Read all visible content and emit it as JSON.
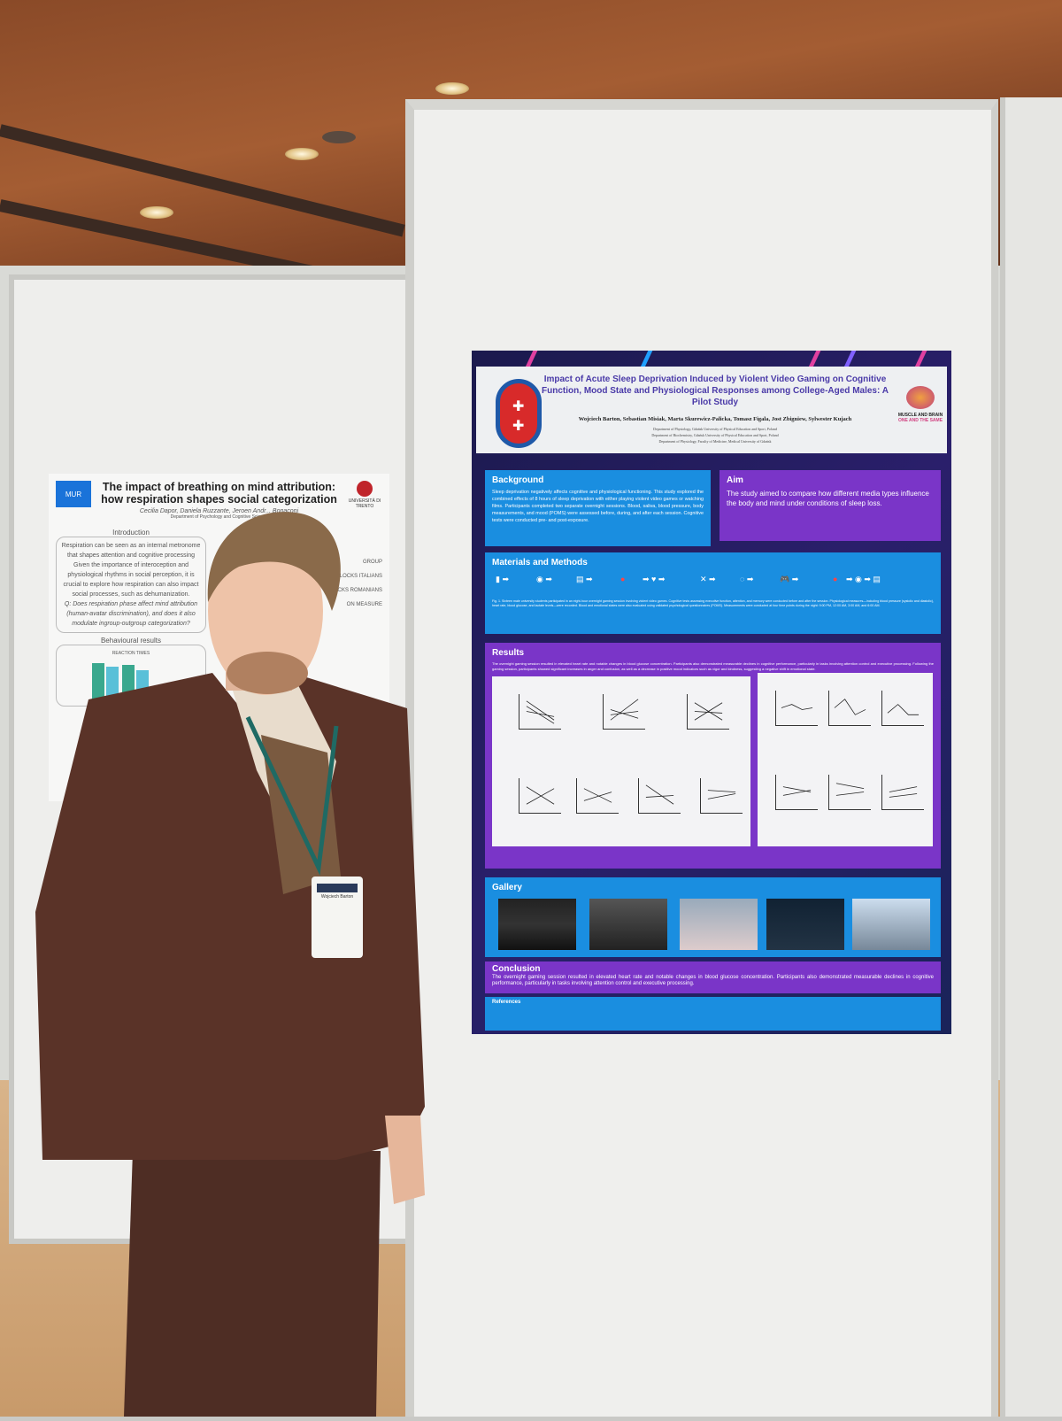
{
  "left_poster": {
    "title": "The impact of breathing on mind attribution: how respiration shapes social categorization",
    "authors": "Cecilia Dapor, Daniela Ruzzante, Jeroen Andr... Bonaconi",
    "department": "Department of Psychology and Cognitive Science",
    "logo_left": "MUR",
    "logo_right": "UNIVERSITÀ DI TRENTO",
    "intro_heading": "Introduction",
    "intro_p1": "Respiration can be seen as an internal metronome that shapes attention and cognitive processing",
    "intro_p2": "Given the importance of interoception and physiological rhythms in social perception, it is crucial to explore how respiration can also impact social processes, such as dehumanization.",
    "intro_q": "Q: Does respiration phase affect mind attribution (human-avatar discrimination), and does it also modulate ingroup-outgroup categorization?",
    "side_labels": [
      "GROUP",
      "BLOCKS ITALIANS",
      "BLOCKS ROMANIANS",
      "ON MEASURE"
    ],
    "results_heading": "Behavioural results",
    "chart_label": "REACTION TIMES"
  },
  "right_poster": {
    "title": "Impact of Acute Sleep Deprivation Induced by Violent Video Gaming on Cognitive Function, Mood State and Physiological Responses among College-Aged Males: A Pilot Study",
    "authors": "Wojciech Barton, Sebastian Misiak, Marta Skurewicz-Palicka, Tomasz Figala, Jost Zbigniew, Sylwester Kujach",
    "affiliations": [
      "Department of Physiology, Gdańsk University of Physical Education and Sport, Poland",
      "Department of Biochemistry, Gdańsk University of Physical Education and Sport, Poland",
      "Department of Physiology, Faculty of Medicine, Medical University of Gdańsk"
    ],
    "logo_right": {
      "line1": "MUSCLE AND BRAIN",
      "line2": "ONE AND THE SAME"
    },
    "background": {
      "heading": "Background",
      "text": "Sleep deprivation negatively affects cognitive and physiological functioning. This study explored the combined effects of 8 hours of sleep deprivation with either playing violent video games or watching films. Participants completed two separate overnight sessions. Blood, saliva, blood pressure, body measurements, and mood (POMS) were assessed before, during, and after each session. Cognitive tests were conducted pre- and post-exposure."
    },
    "aim": {
      "heading": "Aim",
      "text": "The study aimed to compare how different media types influence the body and mind under conditions of sleep loss."
    },
    "methods": {
      "heading": "Materials and Methods",
      "caption": "Fig. 1. Sixteen male university students participated in an eight-hour overnight gaming session involving violent video games. Cognitive tests assessing executive function, attention, and memory were conducted before and after the session. Physiological measures—including blood pressure (systolic and diastolic), heart rate, blood glucose, and lactate levels—were recorded. Blood and emotional states were also evaluated using validated psychological questionnaires (POMS). Measurements were conducted at four time points during the night: 9:00 PM, 12:00 AM, 3:00 AM, and 6:00 AM."
    },
    "results": {
      "heading": "Results",
      "text": "The overnight gaming session resulted in elevated heart rate and notable changes in blood glucose concentration. Participants also demonstrated measurable declines in cognitive performance, particularly in tasks involving attention control and executive processing. Following the gaming session, participants showed significant increases in anger and confusion, as well as a decrease in positive mood indicators such as vigor and kindness, suggesting a negative shift in emotional state."
    },
    "gallery": {
      "heading": "Gallery"
    },
    "conclusion": {
      "heading": "Conclusion",
      "text": "The overnight gaming session resulted in elevated heart rate and notable changes in blood glucose concentration. Participants also demonstrated measurable declines in cognitive performance, particularly in tasks involving attention control and executive processing."
    },
    "references": {
      "heading": "References"
    }
  },
  "badge": {
    "name": "Wojciech Barton"
  },
  "colors": {
    "poster_blue": "#1a8ee0",
    "poster_purple": "#7a35c8",
    "poster_dark": "#1b1a4d",
    "suit": "#5a3328"
  }
}
